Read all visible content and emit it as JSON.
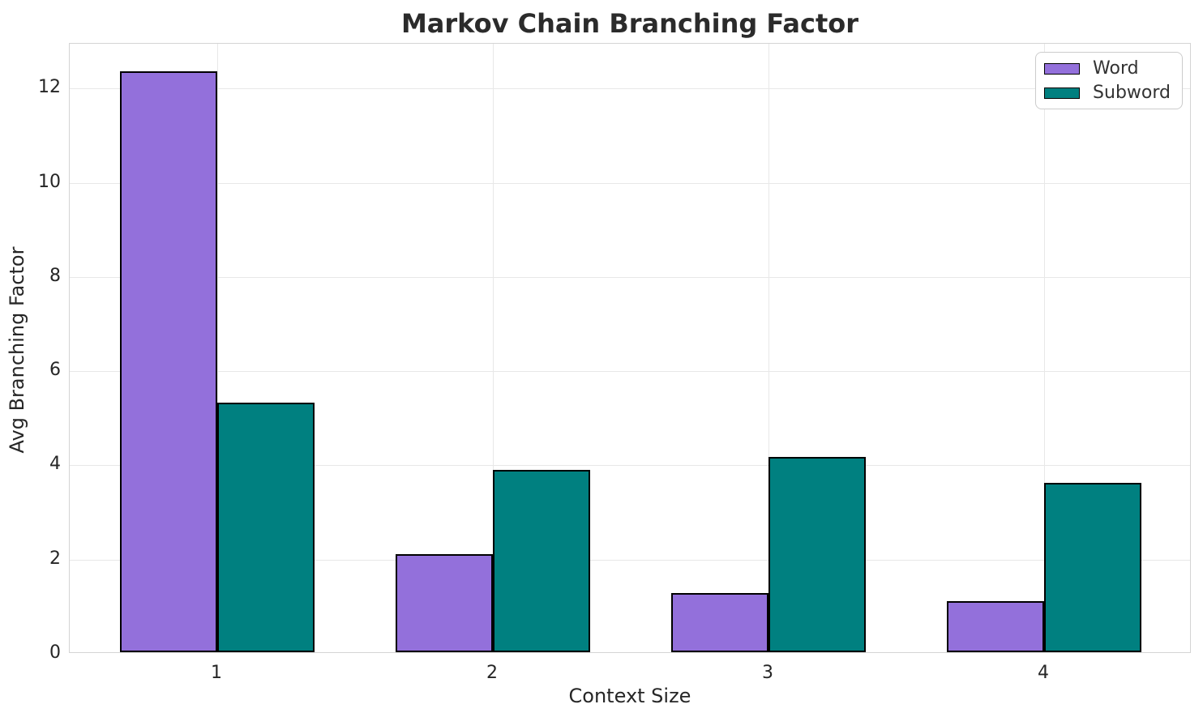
{
  "chart_data": {
    "type": "bar",
    "title": "Markov Chain Branching Factor",
    "xlabel": "Context Size",
    "ylabel": "Avg Branching Factor",
    "categories": [
      "1",
      "2",
      "3",
      "4"
    ],
    "series": [
      {
        "name": "Word",
        "color": "#9370DB",
        "values": [
          12.33,
          2.08,
          1.25,
          1.08
        ]
      },
      {
        "name": "Subword",
        "color": "#008080",
        "values": [
          5.3,
          3.87,
          4.15,
          3.59
        ]
      }
    ],
    "yticks": [
      0,
      2,
      4,
      6,
      8,
      10,
      12
    ],
    "ylim": [
      0,
      12.95
    ],
    "grid": true,
    "legend_position": "upper right",
    "bar_edge_color": "#000000",
    "background_color": "#ffffff"
  }
}
